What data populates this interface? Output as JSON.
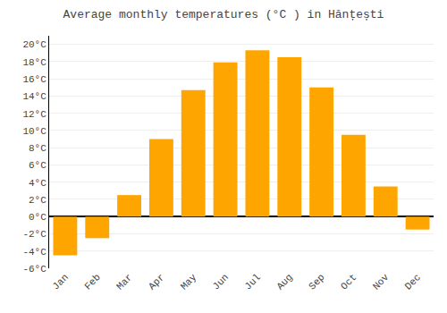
{
  "chart_data": {
    "type": "bar",
    "title": "Average monthly temperatures (°C ) in Hănțești",
    "categories": [
      "Jan",
      "Feb",
      "Mar",
      "Apr",
      "May",
      "Jun",
      "Jul",
      "Aug",
      "Sep",
      "Oct",
      "Nov",
      "Dec"
    ],
    "values": [
      -4.5,
      -2.5,
      2.5,
      9.0,
      14.7,
      17.9,
      19.3,
      18.5,
      15.0,
      9.5,
      3.5,
      -1.5
    ],
    "color": "#FFA500",
    "ylim": [
      -6,
      21
    ],
    "yticks": [
      {
        "value": -6,
        "label": "-6°C"
      },
      {
        "value": -4,
        "label": "-4°C"
      },
      {
        "value": -2,
        "label": "-2°C"
      },
      {
        "value": 0,
        "label": "0°C"
      },
      {
        "value": 2,
        "label": "2°C"
      },
      {
        "value": 4,
        "label": "4°C"
      },
      {
        "value": 6,
        "label": "6°C"
      },
      {
        "value": 8,
        "label": "8°C"
      },
      {
        "value": 10,
        "label": "10°C"
      },
      {
        "value": 12,
        "label": "12°C"
      },
      {
        "value": 14,
        "label": "14°C"
      },
      {
        "value": 16,
        "label": "16°C"
      },
      {
        "value": 18,
        "label": "18°C"
      },
      {
        "value": 20,
        "label": "20°C"
      }
    ],
    "grid": true
  }
}
